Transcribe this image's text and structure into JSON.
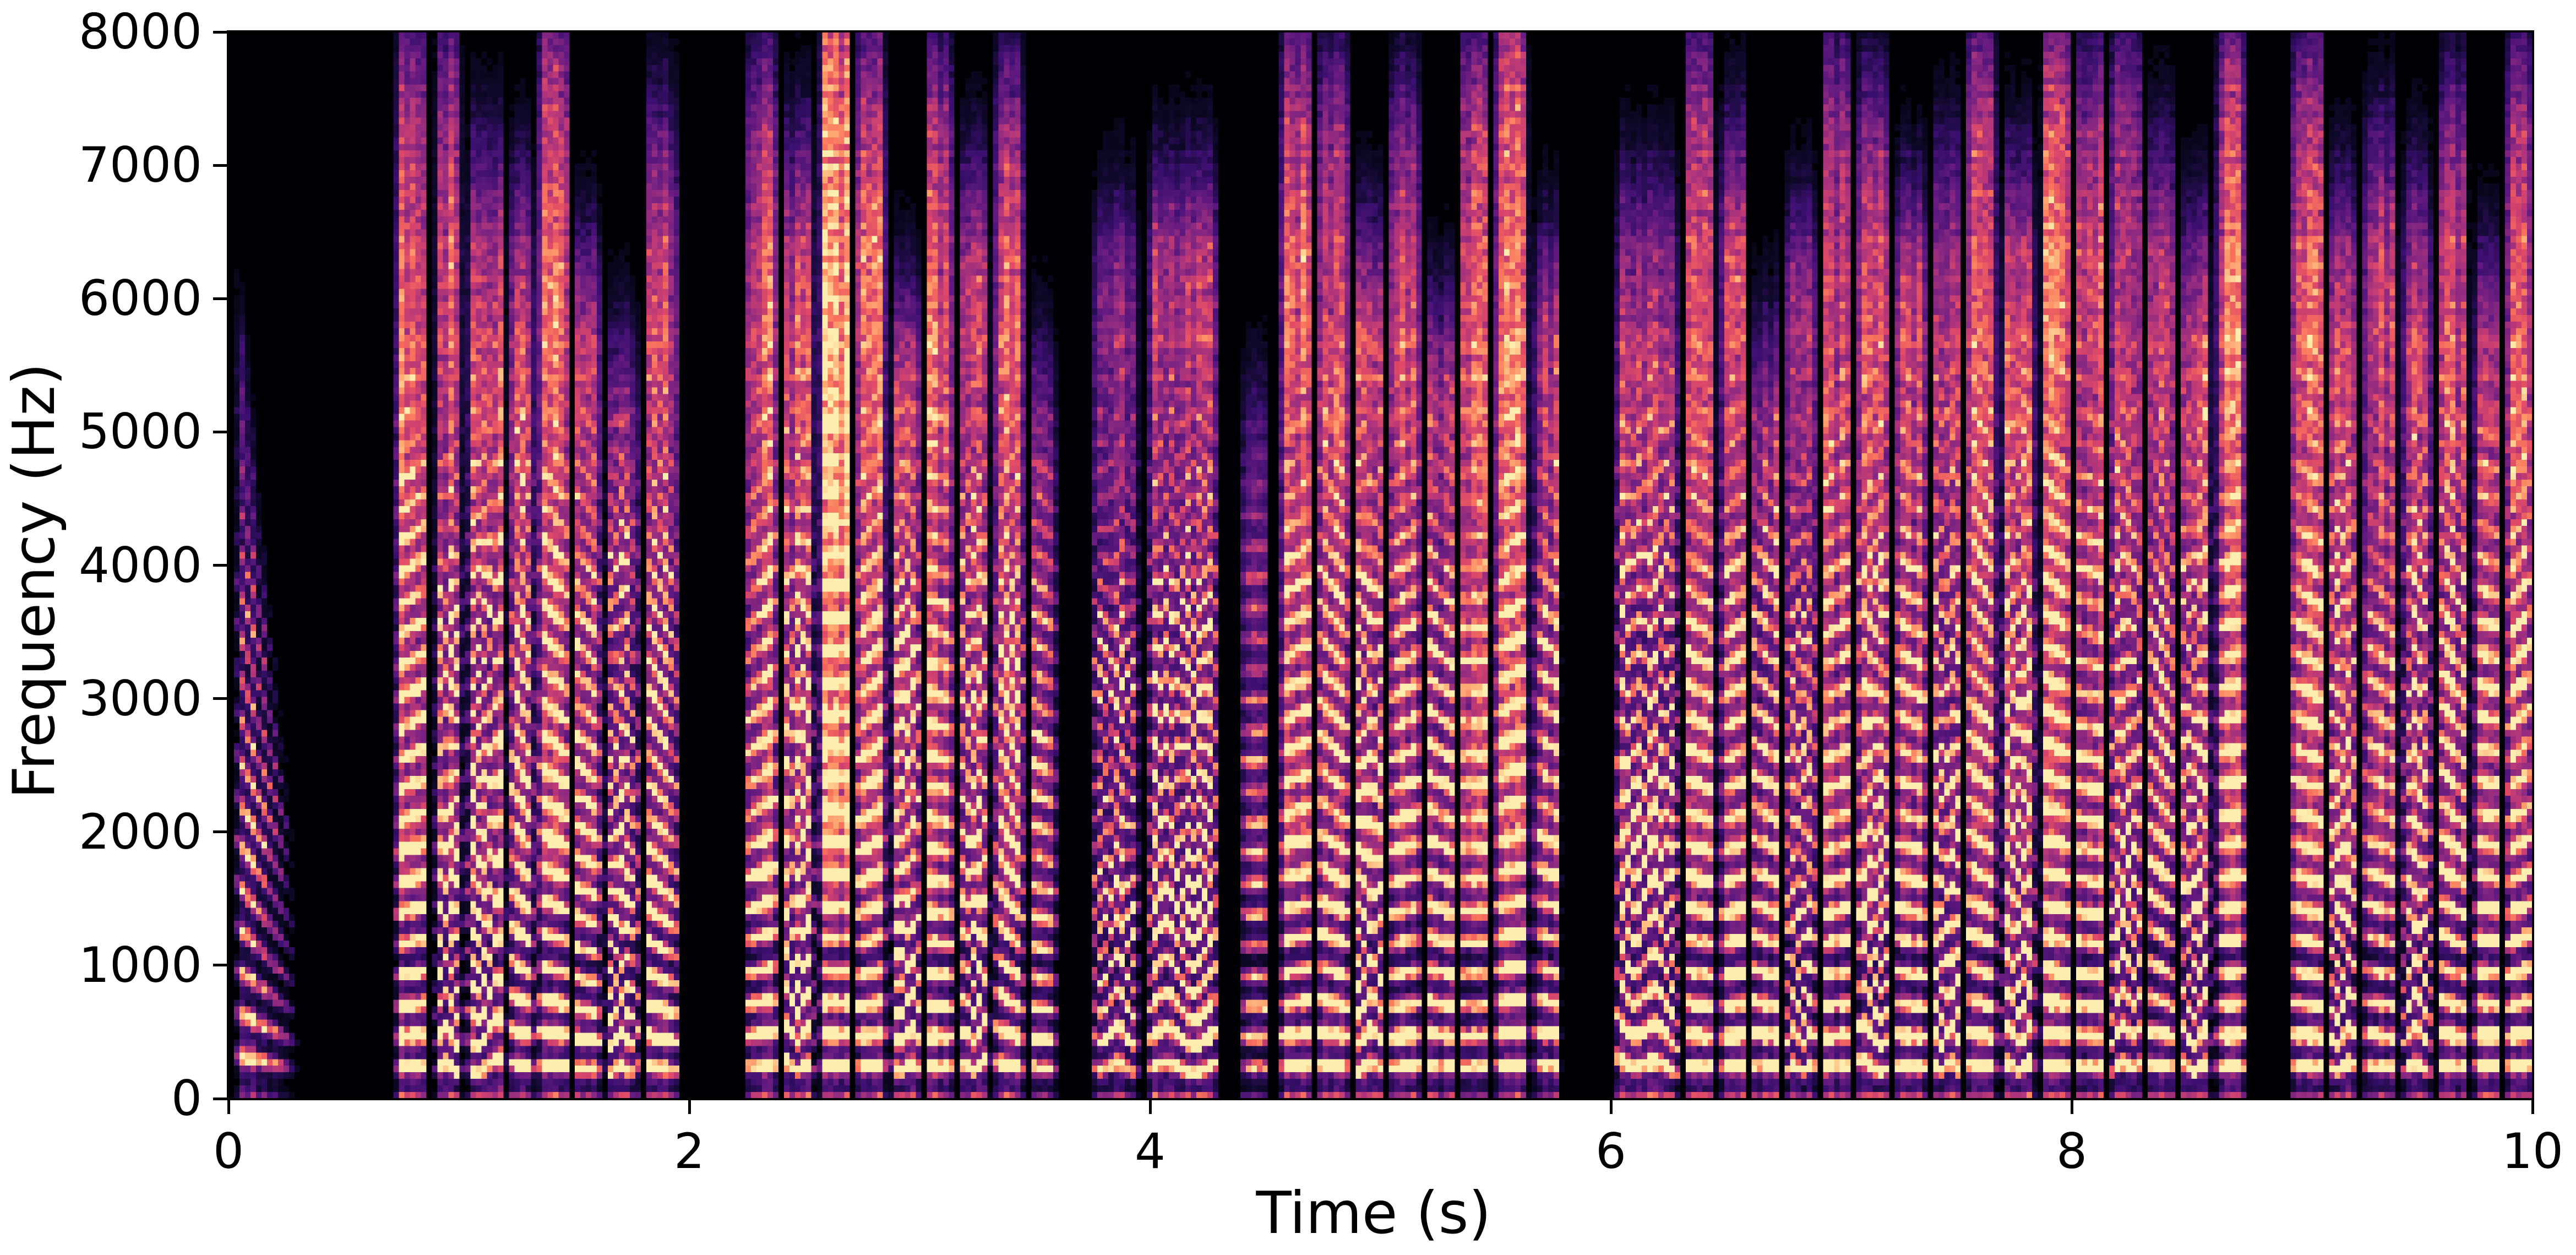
{
  "figure": {
    "background": "#ffffff",
    "plot_background": "#000004",
    "spine_color": "#000000",
    "tick_color": "#000000"
  },
  "chart_data": {
    "type": "heatmap",
    "subtype": "speech-spectrogram",
    "title": "",
    "xlabel": "Time (s)",
    "ylabel": "Frequency (Hz)",
    "xlim": [
      0,
      10
    ],
    "ylim": [
      0,
      8000
    ],
    "xticks": [
      0,
      2,
      4,
      6,
      8,
      10
    ],
    "yticks": [
      0,
      1000,
      2000,
      3000,
      4000,
      5000,
      6000,
      7000,
      8000
    ],
    "grid": false,
    "legend": false,
    "colormap": "magma",
    "colormap_stops": [
      [
        0.0,
        "#000004"
      ],
      [
        0.1,
        "#10092d"
      ],
      [
        0.2,
        "#3b0f70"
      ],
      [
        0.3,
        "#641a80"
      ],
      [
        0.4,
        "#8c2981"
      ],
      [
        0.5,
        "#b73779"
      ],
      [
        0.6,
        "#de4968"
      ],
      [
        0.7,
        "#f7705c"
      ],
      [
        0.8,
        "#fe9f6d"
      ],
      [
        0.9,
        "#feca8d"
      ],
      [
        1.0,
        "#fcfdbf"
      ]
    ],
    "time_resolution_s": 0.024,
    "freq_resolution_hz": 50,
    "segments_format": [
      "t_start_s",
      "t_end_s",
      "amplitude",
      "max_freq_hz",
      "hf_noise",
      "pitch_start_hz",
      "pitch_end_hz",
      "pitch_wiggle",
      "fade_shape"
    ],
    "segments": [
      [
        0.02,
        0.32,
        0.85,
        6500,
        0.05,
        330,
        200,
        0,
        1
      ],
      [
        0.72,
        0.87,
        1.0,
        7600,
        0.25,
        230,
        240,
        0,
        0
      ],
      [
        0.89,
        1.02,
        0.95,
        7700,
        0.2,
        240,
        230,
        1,
        0
      ],
      [
        1.03,
        1.21,
        1.0,
        6800,
        0.15,
        200,
        290,
        1,
        0
      ],
      [
        1.22,
        1.33,
        0.9,
        6500,
        0.2,
        260,
        230,
        0,
        0
      ],
      [
        1.34,
        1.48,
        1.0,
        7700,
        0.3,
        250,
        235,
        0,
        0
      ],
      [
        1.49,
        1.62,
        0.85,
        6000,
        0.2,
        230,
        215,
        0,
        0
      ],
      [
        1.63,
        1.79,
        0.8,
        5400,
        0.1,
        220,
        230,
        1,
        0
      ],
      [
        1.8,
        1.96,
        0.95,
        7100,
        0.15,
        240,
        210,
        0,
        0
      ],
      [
        2.24,
        2.39,
        0.95,
        7400,
        0.25,
        235,
        250,
        0,
        0
      ],
      [
        2.4,
        2.55,
        0.9,
        6800,
        0.2,
        250,
        230,
        1,
        0
      ],
      [
        2.56,
        2.71,
        1.0,
        7900,
        0.55,
        240,
        240,
        0,
        0
      ],
      [
        2.72,
        2.86,
        0.95,
        7500,
        0.3,
        230,
        245,
        0,
        0
      ],
      [
        2.87,
        3.01,
        0.9,
        5600,
        0.2,
        245,
        225,
        1,
        0
      ],
      [
        3.02,
        3.15,
        0.95,
        7400,
        0.25,
        235,
        230,
        0,
        0
      ],
      [
        3.16,
        3.31,
        0.95,
        6600,
        0.2,
        210,
        280,
        1,
        0
      ],
      [
        3.32,
        3.46,
        0.9,
        7300,
        0.25,
        270,
        220,
        0,
        0
      ],
      [
        3.47,
        3.6,
        0.6,
        5200,
        0.15,
        230,
        220,
        0,
        0
      ],
      [
        3.74,
        3.96,
        0.75,
        6400,
        0.1,
        250,
        230,
        1,
        0
      ],
      [
        3.97,
        4.31,
        0.95,
        6700,
        0.1,
        240,
        220,
        1,
        0
      ],
      [
        4.39,
        4.52,
        0.45,
        5000,
        0.1,
        230,
        230,
        0,
        0
      ],
      [
        4.56,
        4.71,
        0.95,
        7600,
        0.3,
        235,
        245,
        0,
        0
      ],
      [
        4.72,
        4.87,
        0.9,
        7400,
        0.2,
        250,
        230,
        0,
        0
      ],
      [
        4.88,
        5.02,
        0.9,
        6200,
        0.15,
        240,
        225,
        1,
        0
      ],
      [
        5.03,
        5.18,
        0.85,
        7200,
        0.2,
        230,
        240,
        0,
        0
      ],
      [
        5.19,
        5.33,
        0.8,
        5600,
        0.15,
        245,
        230,
        0,
        0
      ],
      [
        5.34,
        5.48,
        0.6,
        7400,
        0.35,
        235,
        235,
        0,
        0
      ],
      [
        5.49,
        5.65,
        0.9,
        7800,
        0.35,
        240,
        250,
        0,
        0
      ],
      [
        5.66,
        5.79,
        0.8,
        6000,
        0.2,
        250,
        235,
        0,
        0
      ],
      [
        6.0,
        6.31,
        0.95,
        6600,
        0.1,
        300,
        210,
        1,
        0
      ],
      [
        6.32,
        6.46,
        0.9,
        7500,
        0.25,
        240,
        230,
        0,
        0
      ],
      [
        6.47,
        6.6,
        0.95,
        6900,
        0.2,
        230,
        240,
        0,
        0
      ],
      [
        6.61,
        6.74,
        0.9,
        5400,
        0.15,
        245,
        230,
        0,
        0
      ],
      [
        6.75,
        6.9,
        0.7,
        6300,
        0.15,
        235,
        225,
        1,
        0
      ],
      [
        6.91,
        7.05,
        0.8,
        7500,
        0.2,
        230,
        240,
        0,
        0
      ],
      [
        7.06,
        7.22,
        0.85,
        7200,
        0.2,
        260,
        220,
        1,
        0
      ],
      [
        7.23,
        7.38,
        0.85,
        6400,
        0.2,
        240,
        230,
        0,
        0
      ],
      [
        7.39,
        7.53,
        0.95,
        6800,
        0.15,
        220,
        260,
        1,
        0
      ],
      [
        7.54,
        7.68,
        0.9,
        7600,
        0.25,
        250,
        230,
        0,
        0
      ],
      [
        7.69,
        7.85,
        0.9,
        6600,
        0.2,
        235,
        245,
        1,
        0
      ],
      [
        7.86,
        8.0,
        0.95,
        7700,
        0.3,
        245,
        235,
        0,
        0
      ],
      [
        8.01,
        8.15,
        0.9,
        7400,
        0.25,
        235,
        230,
        0,
        0
      ],
      [
        8.16,
        8.31,
        1.0,
        7600,
        0.2,
        210,
        290,
        1,
        0
      ],
      [
        8.32,
        8.45,
        0.9,
        6800,
        0.2,
        260,
        230,
        0,
        0
      ],
      [
        8.46,
        8.61,
        0.85,
        6200,
        0.2,
        240,
        225,
        1,
        0
      ],
      [
        8.62,
        8.76,
        0.9,
        7600,
        0.3,
        235,
        240,
        0,
        0
      ],
      [
        8.95,
        9.1,
        0.85,
        7400,
        0.3,
        240,
        230,
        0,
        0
      ],
      [
        9.11,
        9.25,
        0.8,
        6400,
        0.2,
        230,
        240,
        1,
        0
      ],
      [
        9.26,
        9.42,
        0.7,
        6800,
        0.25,
        245,
        230,
        0,
        0
      ],
      [
        9.43,
        9.57,
        0.85,
        6500,
        0.2,
        235,
        230,
        1,
        0
      ],
      [
        9.58,
        9.73,
        0.9,
        7200,
        0.2,
        250,
        225,
        0,
        0
      ],
      [
        9.74,
        9.87,
        0.85,
        5800,
        0.2,
        240,
        235,
        0,
        0
      ],
      [
        9.88,
        10.0,
        0.9,
        7400,
        0.25,
        230,
        245,
        0,
        0
      ]
    ]
  }
}
